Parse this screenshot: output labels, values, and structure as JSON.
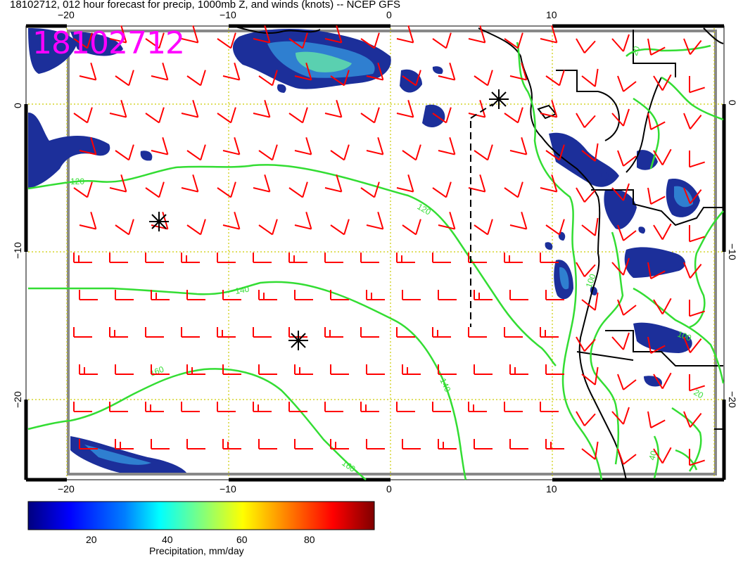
{
  "title": "18102712, 012 hour forecast for precip, 1000mb Z, and winds (knots) -- NCEP GFS",
  "stamp": "18102712",
  "axes": {
    "top_ticks": [
      "−20",
      "−10",
      "0",
      "10"
    ],
    "bottom_ticks": [
      "−20",
      "−10",
      "0",
      "10"
    ],
    "left_ticks": [
      "0",
      "−10",
      "−20"
    ],
    "right_ticks": [
      "0",
      "−10",
      "−20"
    ]
  },
  "contours": {
    "labels": [
      "120",
      "120",
      "140",
      "140",
      "160",
      "160",
      "100",
      "100",
      "20",
      "40",
      "20"
    ]
  },
  "colorbar": {
    "label": "Precipitation, mm/day",
    "ticks": [
      "20",
      "40",
      "60",
      "80"
    ],
    "colors": [
      "#00007f",
      "#0000ff",
      "#007fff",
      "#00ffff",
      "#7fff7f",
      "#ffff00",
      "#ff7f00",
      "#ff0000",
      "#7f0000"
    ]
  },
  "colors": {
    "wind_barb": "#ff0000",
    "contour": "#33dd33",
    "grid": "#cccc00",
    "coast": "#000000",
    "stamp": "#ff00ff"
  }
}
